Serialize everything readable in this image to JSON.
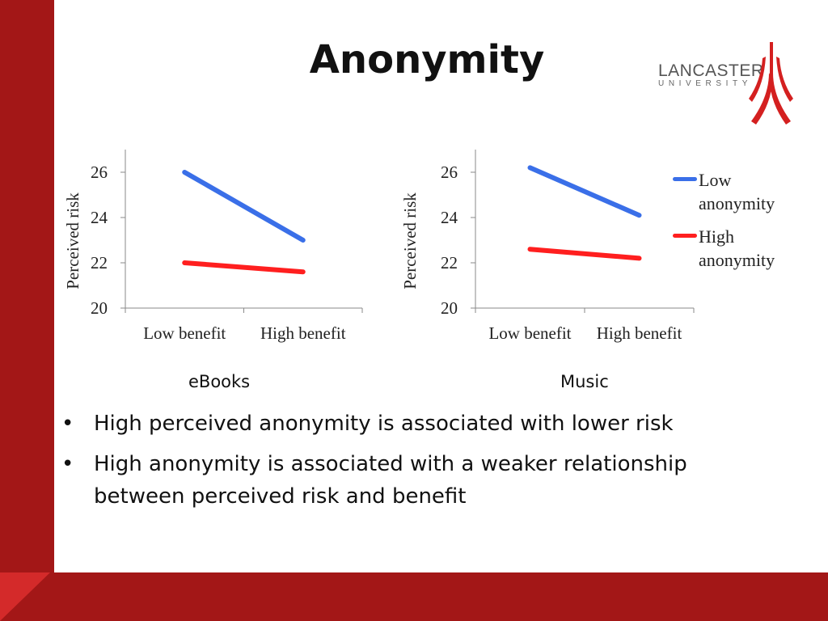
{
  "slide": {
    "title": "Anonymity",
    "logo": {
      "name": "LANCASTER",
      "sub": "UNIVERSITY"
    },
    "bullets": [
      "High perceived anonymity is associated with lower risk",
      "High anonymity is associated with a weaker relationship between perceived risk and benefit"
    ]
  },
  "legend": [
    {
      "label": "Low anonymity",
      "color": "#3a6fe8"
    },
    {
      "label": "High anonymity",
      "color": "#ff1f1f"
    }
  ],
  "chart_data": [
    {
      "type": "line",
      "title": "eBooks",
      "categories": [
        "Low benefit",
        "High benefit"
      ],
      "ylabel": "Perceived risk",
      "xlabel": "",
      "ylim": [
        20,
        27
      ],
      "yticks": [
        20,
        22,
        24,
        26
      ],
      "series": [
        {
          "name": "Low anonymity",
          "values": [
            26,
            23
          ],
          "color": "#3a6fe8"
        },
        {
          "name": "High anonymity",
          "values": [
            22,
            21.6
          ],
          "color": "#ff1f1f"
        }
      ]
    },
    {
      "type": "line",
      "title": "Music",
      "categories": [
        "Low benefit",
        "High benefit"
      ],
      "ylabel": "Perceived risk",
      "xlabel": "",
      "ylim": [
        20,
        27
      ],
      "yticks": [
        20,
        22,
        24,
        26
      ],
      "series": [
        {
          "name": "Low anonymity",
          "values": [
            26.2,
            24.1
          ],
          "color": "#3a6fe8"
        },
        {
          "name": "High anonymity",
          "values": [
            22.6,
            22.2
          ],
          "color": "#ff1f1f"
        }
      ]
    }
  ]
}
